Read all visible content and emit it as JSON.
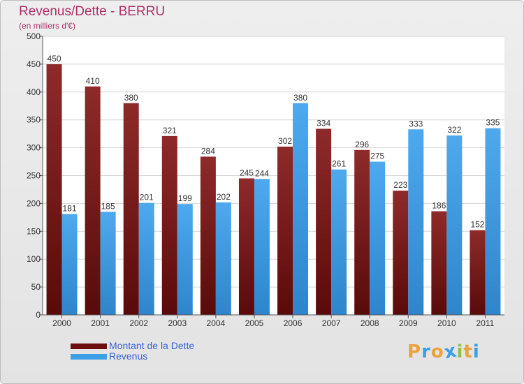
{
  "header": {
    "title": "Revenus/Dette - BERRU",
    "subtitle": "(en milliers d'€)"
  },
  "legend": {
    "items": [
      {
        "label": "Montant de la Dette",
        "color": "#7a1a1a"
      },
      {
        "label": "Revenus",
        "color": "#3d9fe6"
      }
    ]
  },
  "logo": {
    "text": "Proxiti",
    "letters": [
      {
        "ch": "P",
        "color": "#e8a33a"
      },
      {
        "ch": "r",
        "color": "#3d9fe6"
      },
      {
        "ch": "o",
        "color": "#e8a33a"
      },
      {
        "ch": "x",
        "color": "#3d9fe6"
      },
      {
        "ch": "i",
        "color": "#8bc34a"
      },
      {
        "ch": "t",
        "color": "#e8a33a"
      },
      {
        "ch": "i",
        "color": "#3d9fe6"
      }
    ]
  },
  "chart_data": {
    "type": "bar",
    "title": "Revenus/Dette - BERRU",
    "subtitle": "(en milliers d'€)",
    "categories": [
      "2000",
      "2001",
      "2002",
      "2003",
      "2004",
      "2005",
      "2006",
      "2007",
      "2008",
      "2009",
      "2010",
      "2011"
    ],
    "series": [
      {
        "name": "Montant de la Dette",
        "color": "#7a1a1a",
        "values": [
          450,
          410,
          380,
          321,
          284,
          245,
          302,
          334,
          296,
          223,
          186,
          152
        ]
      },
      {
        "name": "Revenus",
        "color": "#3d9fe6",
        "values": [
          181,
          185,
          201,
          199,
          202,
          244,
          380,
          261,
          275,
          333,
          322,
          335
        ]
      }
    ],
    "ylim": [
      0,
      500
    ],
    "yticks": [
      0,
      50,
      100,
      150,
      200,
      250,
      300,
      350,
      400,
      450,
      500
    ],
    "grid": true,
    "legend_position": "bottom-left"
  }
}
